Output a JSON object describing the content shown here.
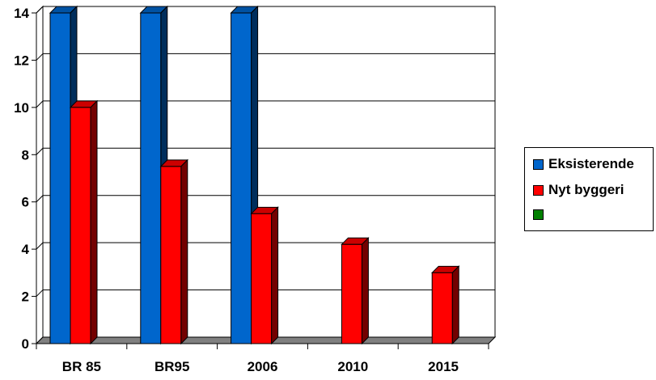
{
  "chart_data": {
    "type": "bar",
    "categories": [
      "BR 85",
      "BR95",
      "2006",
      "2010",
      "2015"
    ],
    "series": [
      {
        "name": "Eksisterende",
        "color": "#0066cc",
        "values": [
          14,
          14,
          14,
          null,
          null
        ]
      },
      {
        "name": "Nyt byggeri",
        "color": "#ff0000",
        "values": [
          10,
          7.5,
          5.5,
          4.2,
          3
        ]
      },
      {
        "name": "",
        "color": "#008000",
        "values": [
          null,
          null,
          null,
          null,
          null
        ]
      }
    ],
    "ylim": [
      0,
      14
    ],
    "yticks": [
      "0",
      "2",
      "4",
      "6",
      "8",
      "10",
      "12",
      "14"
    ],
    "grid": true,
    "legend_position": "right",
    "title": "",
    "xlabel": "",
    "ylabel": ""
  }
}
